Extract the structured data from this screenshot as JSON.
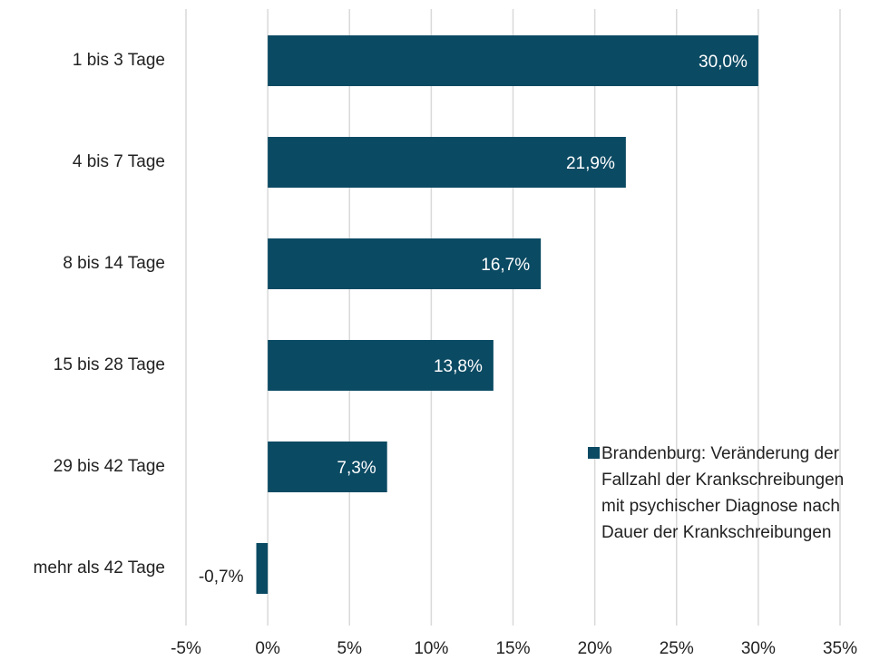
{
  "chart_data": {
    "type": "bar",
    "orientation": "horizontal",
    "categories": [
      "1 bis 3 Tage",
      "4 bis 7 Tage",
      "8 bis 14 Tage",
      "15 bis 28 Tage",
      "29 bis 42 Tage",
      "mehr als 42 Tage"
    ],
    "series": [
      {
        "name": "Brandenburg: Veränderung der Fallzahl der Krankschreibungen mit psychischer Diagnose nach Dauer der Krankschreibungen",
        "color": "#0b4a63",
        "values": [
          30.0,
          21.9,
          16.7,
          13.8,
          7.3,
          -0.7
        ],
        "value_labels": [
          "30,0%",
          "21,9%",
          "16,7%",
          "13,8%",
          "7,3%",
          "-0,7%"
        ]
      }
    ],
    "xlim": [
      -5,
      35
    ],
    "xticks": [
      {
        "value": -5,
        "label": "-5%"
      },
      {
        "value": 0,
        "label": "0%"
      },
      {
        "value": 5,
        "label": "5%"
      },
      {
        "value": 10,
        "label": "10%"
      },
      {
        "value": 15,
        "label": "15%"
      },
      {
        "value": 20,
        "label": "20%"
      },
      {
        "value": 25,
        "label": "25%"
      },
      {
        "value": 30,
        "label": "30%"
      },
      {
        "value": 35,
        "label": "35%"
      }
    ],
    "grid": true,
    "legend": "lower right"
  }
}
